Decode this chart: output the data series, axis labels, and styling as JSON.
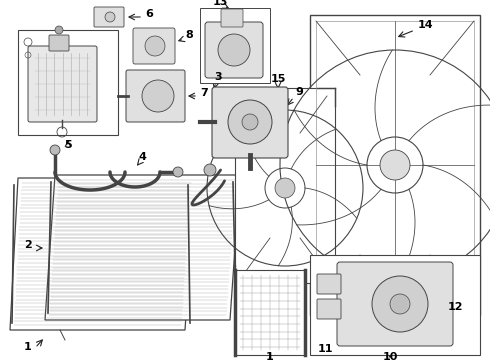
{
  "bg_color": "#ffffff",
  "lc": "#444444",
  "lc_light": "#999999",
  "lc_dark": "#222222",
  "figsize": [
    4.9,
    3.6
  ],
  "dpi": 100
}
